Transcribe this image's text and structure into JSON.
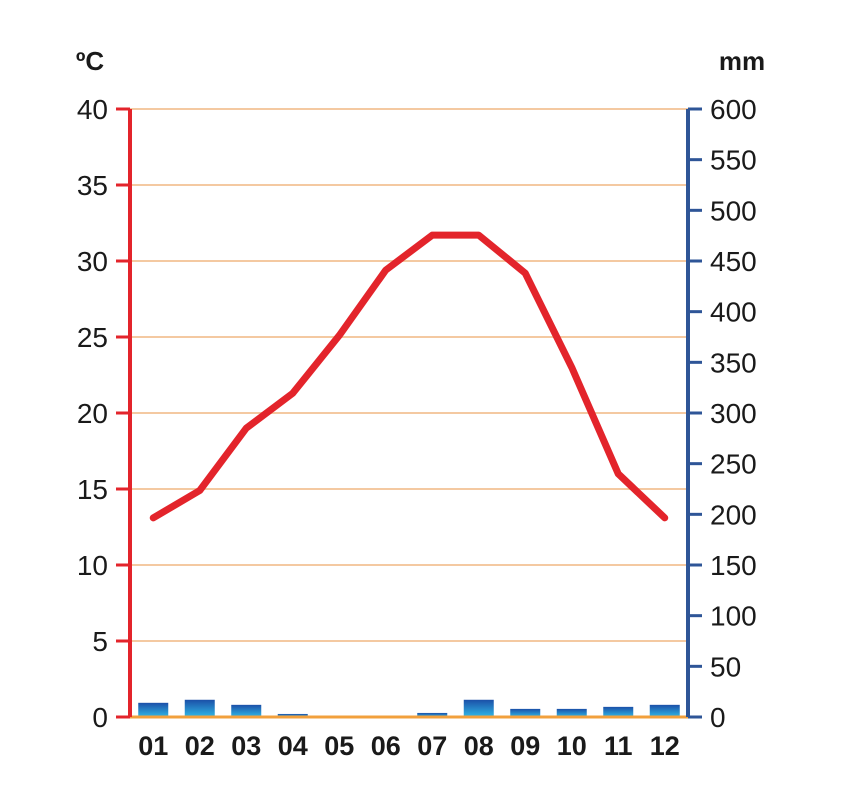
{
  "chart_data": {
    "type": "bar",
    "categories": [
      "01",
      "02",
      "03",
      "04",
      "05",
      "06",
      "07",
      "08",
      "09",
      "10",
      "11",
      "12"
    ],
    "series": [
      {
        "type": "line",
        "axis": "left",
        "values": [
          13.1,
          14.9,
          19.0,
          21.3,
          25.1,
          29.4,
          31.7,
          31.7,
          29.2,
          23.0,
          16.0,
          13.1
        ]
      },
      {
        "type": "bar",
        "axis": "right",
        "values": [
          14,
          17,
          12,
          3,
          0,
          0,
          4,
          17,
          8,
          8,
          10,
          12
        ]
      }
    ],
    "y_left": {
      "unit": "ºC",
      "ylim": [
        0,
        40
      ],
      "ticks": [
        "0",
        "5",
        "10",
        "15",
        "20",
        "25",
        "30",
        "35",
        "40"
      ]
    },
    "y_right": {
      "unit": "mm",
      "ylim": [
        0,
        600
      ],
      "ticks": [
        "0",
        "50",
        "100",
        "150",
        "200",
        "250",
        "300",
        "350",
        "400",
        "450",
        "500",
        "550",
        "600"
      ]
    },
    "grid": true,
    "colors": {
      "temperature_line": "#e3242b",
      "left_axis": "#e3242b",
      "right_axis": "#2e5597",
      "gridline": "#f4c9a1",
      "baseline": "#f2a03c",
      "bar_top": "#1b4fa8",
      "bar_bottom": "#30b8e6",
      "tick_text": "#1a1a1a"
    }
  }
}
